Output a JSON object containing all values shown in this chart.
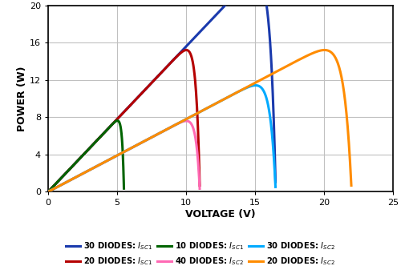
{
  "title": "",
  "xlabel": "VOLTAGE (V)",
  "ylabel": "POWER (W)",
  "xlim": [
    0,
    25
  ],
  "ylim": [
    0,
    20
  ],
  "xticks": [
    0,
    5,
    10,
    15,
    20,
    25
  ],
  "yticks": [
    0,
    4,
    8,
    12,
    16,
    20
  ],
  "background_color": "#ffffff",
  "grid_color": "#c0c0c0",
  "curve_params": [
    {
      "Isc": 1.56,
      "Voc": 16.5,
      "Vt": 0.4,
      "color": "#1a3aad",
      "label": "30 DIODES: $I_{SC1}$"
    },
    {
      "Isc": 1.56,
      "Voc": 11.0,
      "Vt": 0.27,
      "color": "#b50000",
      "label": "20 DIODES: $I_{SC1}$"
    },
    {
      "Isc": 1.56,
      "Voc": 5.5,
      "Vt": 0.13,
      "color": "#006400",
      "label": "10 DIODES: $I_{SC1}$"
    },
    {
      "Isc": 0.78,
      "Voc": 11.0,
      "Vt": 0.27,
      "color": "#ff69b4",
      "label": "40 DIODES: $I_{SC2}$"
    },
    {
      "Isc": 0.78,
      "Voc": 16.5,
      "Vt": 0.4,
      "color": "#00aaff",
      "label": "30 DIODES: $I_{SC2}$"
    },
    {
      "Isc": 0.78,
      "Voc": 22.0,
      "Vt": 0.54,
      "color": "#ff8c00",
      "label": "20 DIODES: $I_{SC2}$"
    }
  ],
  "legend_labels": [
    "30 DIODES: $I_{SC1}$",
    "20 DIODES: $I_{SC1}$",
    "10 DIODES: $I_{SC1}$",
    "40 DIODES: $I_{SC2}$",
    "30 DIODES: $I_{SC2}$",
    "20 DIODES: $I_{SC2}$"
  ],
  "legend_colors": [
    "#1a3aad",
    "#b50000",
    "#006400",
    "#ff69b4",
    "#00aaff",
    "#ff8c00"
  ]
}
